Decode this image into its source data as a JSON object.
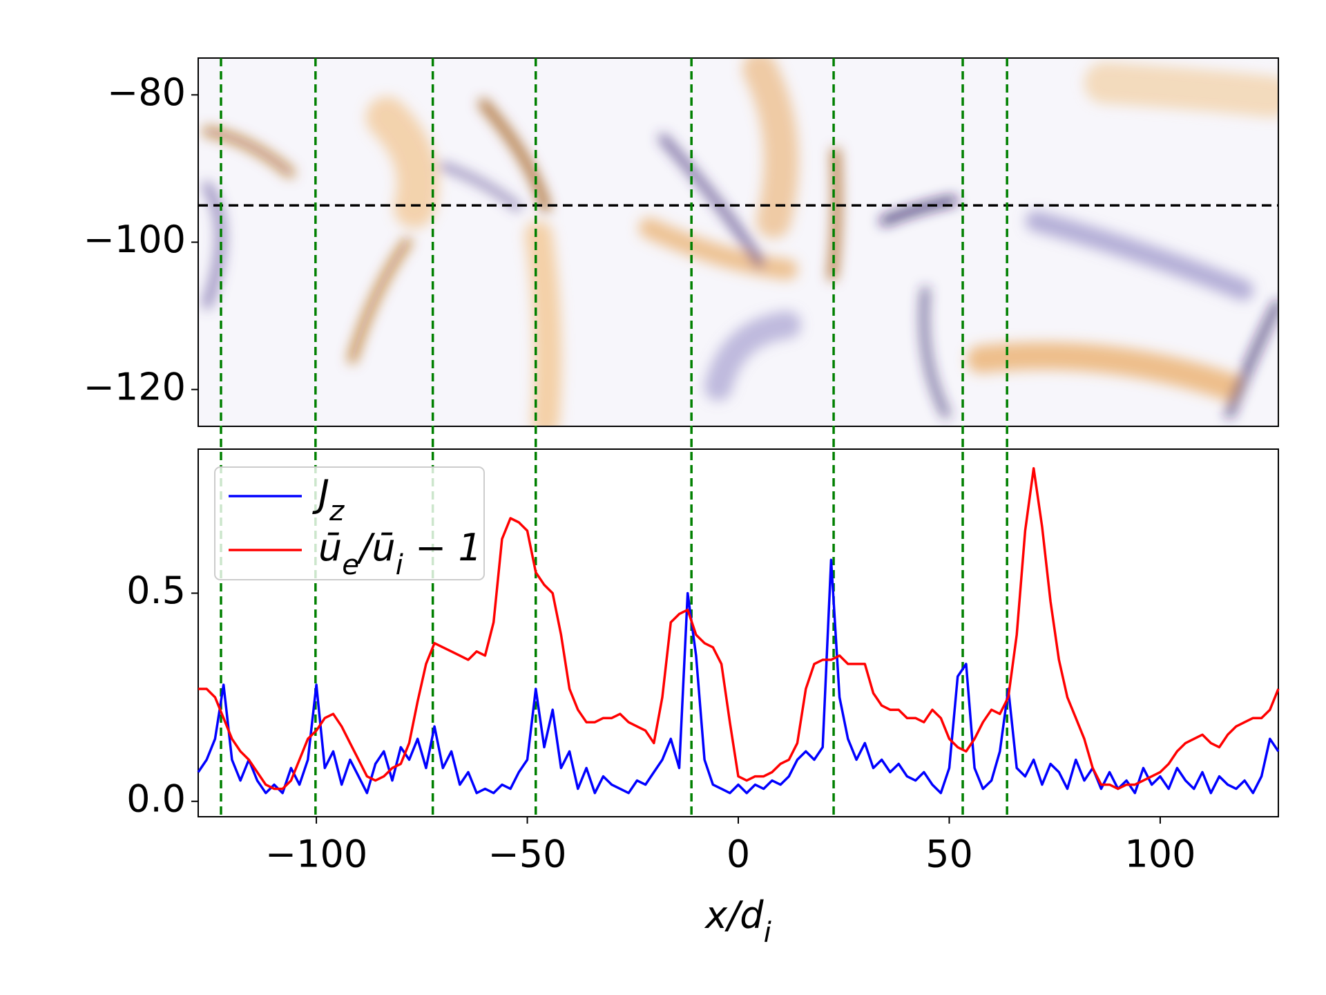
{
  "chart_data": [
    {
      "type": "heatmap",
      "xlim": [
        -128,
        128
      ],
      "ylim": [
        -125,
        -75
      ],
      "yticks": [
        {
          "value": -80,
          "label": "−80"
        },
        {
          "value": -100,
          "label": "−100"
        },
        {
          "value": -120,
          "label": "−120"
        }
      ],
      "hline": -95,
      "vlines": [
        -122.6,
        -100.2,
        -72.4,
        -48.0,
        -11.1,
        22.6,
        53.2,
        63.7
      ]
    },
    {
      "type": "line",
      "xlim": [
        -128,
        128
      ],
      "ylim": [
        -0.037,
        0.846
      ],
      "xticks": [
        {
          "value": -100,
          "label": "−100"
        },
        {
          "value": -50,
          "label": "−50"
        },
        0,
        50,
        100
      ],
      "yticks": [
        {
          "value": 0,
          "label": "0.0"
        },
        0.5
      ],
      "xlabel": "x/d_i",
      "legend": "upper left",
      "x": [
        -128,
        -126,
        -124,
        -122,
        -120,
        -118,
        -116,
        -114,
        -112,
        -110,
        -108,
        -106,
        -104,
        -102,
        -100,
        -98,
        -96,
        -94,
        -92,
        -90,
        -88,
        -86,
        -84,
        -82,
        -80,
        -78,
        -76,
        -74,
        -72,
        -70,
        -68,
        -66,
        -64,
        -62,
        -60,
        -58,
        -56,
        -54,
        -52,
        -50,
        -48,
        -46,
        -44,
        -42,
        -40,
        -38,
        -36,
        -34,
        -32,
        -30,
        -28,
        -26,
        -24,
        -22,
        -20,
        -18,
        -16,
        -14,
        -12,
        -10,
        -8,
        -6,
        -4,
        -2,
        0,
        2,
        4,
        6,
        8,
        10,
        12,
        14,
        16,
        18,
        20,
        22,
        24,
        26,
        28,
        30,
        32,
        34,
        36,
        38,
        40,
        42,
        44,
        46,
        48,
        50,
        52,
        54,
        56,
        58,
        60,
        62,
        64,
        66,
        68,
        70,
        72,
        74,
        76,
        78,
        80,
        82,
        84,
        86,
        88,
        90,
        92,
        94,
        96,
        98,
        100,
        102,
        104,
        106,
        108,
        110,
        112,
        114,
        116,
        118,
        120,
        122,
        124,
        126,
        128
      ],
      "series": [
        {
          "name": "J_z",
          "color": "#0000ff",
          "values": [
            0.07,
            0.1,
            0.15,
            0.28,
            0.1,
            0.05,
            0.1,
            0.05,
            0.02,
            0.04,
            0.02,
            0.08,
            0.04,
            0.1,
            0.28,
            0.08,
            0.12,
            0.04,
            0.1,
            0.06,
            0.02,
            0.09,
            0.12,
            0.05,
            0.13,
            0.1,
            0.15,
            0.08,
            0.18,
            0.08,
            0.12,
            0.04,
            0.07,
            0.02,
            0.03,
            0.02,
            0.04,
            0.03,
            0.07,
            0.1,
            0.27,
            0.13,
            0.22,
            0.08,
            0.12,
            0.03,
            0.08,
            0.02,
            0.06,
            0.04,
            0.03,
            0.02,
            0.05,
            0.04,
            0.07,
            0.1,
            0.15,
            0.08,
            0.5,
            0.35,
            0.1,
            0.04,
            0.03,
            0.02,
            0.04,
            0.02,
            0.04,
            0.03,
            0.05,
            0.04,
            0.06,
            0.1,
            0.12,
            0.1,
            0.13,
            0.58,
            0.25,
            0.15,
            0.1,
            0.14,
            0.08,
            0.1,
            0.07,
            0.09,
            0.06,
            0.05,
            0.07,
            0.04,
            0.02,
            0.08,
            0.3,
            0.33,
            0.08,
            0.03,
            0.05,
            0.12,
            0.27,
            0.08,
            0.06,
            0.1,
            0.04,
            0.09,
            0.07,
            0.03,
            0.1,
            0.05,
            0.08,
            0.03,
            0.07,
            0.03,
            0.05,
            0.02,
            0.08,
            0.04,
            0.06,
            0.03,
            0.08,
            0.05,
            0.03,
            0.07,
            0.02,
            0.06,
            0.04,
            0.03,
            0.05,
            0.02,
            0.06,
            0.15,
            0.12
          ]
        },
        {
          "name": "ū_e/ū_i − 1",
          "color": "#ff0000",
          "values": [
            0.27,
            0.27,
            0.25,
            0.2,
            0.15,
            0.12,
            0.1,
            0.07,
            0.04,
            0.03,
            0.03,
            0.05,
            0.1,
            0.15,
            0.17,
            0.2,
            0.21,
            0.18,
            0.14,
            0.1,
            0.06,
            0.05,
            0.06,
            0.08,
            0.09,
            0.14,
            0.24,
            0.33,
            0.38,
            0.37,
            0.36,
            0.35,
            0.34,
            0.36,
            0.35,
            0.43,
            0.63,
            0.68,
            0.67,
            0.65,
            0.55,
            0.52,
            0.5,
            0.4,
            0.27,
            0.22,
            0.19,
            0.19,
            0.2,
            0.2,
            0.21,
            0.19,
            0.18,
            0.17,
            0.14,
            0.25,
            0.43,
            0.45,
            0.46,
            0.4,
            0.38,
            0.37,
            0.33,
            0.19,
            0.06,
            0.05,
            0.06,
            0.06,
            0.07,
            0.09,
            0.1,
            0.14,
            0.27,
            0.33,
            0.34,
            0.34,
            0.35,
            0.33,
            0.33,
            0.33,
            0.26,
            0.23,
            0.22,
            0.22,
            0.2,
            0.2,
            0.19,
            0.22,
            0.2,
            0.15,
            0.13,
            0.12,
            0.15,
            0.19,
            0.22,
            0.21,
            0.25,
            0.4,
            0.65,
            0.8,
            0.66,
            0.48,
            0.34,
            0.25,
            0.2,
            0.15,
            0.08,
            0.04,
            0.04,
            0.03,
            0.04,
            0.04,
            0.05,
            0.06,
            0.07,
            0.09,
            0.12,
            0.14,
            0.15,
            0.16,
            0.14,
            0.13,
            0.16,
            0.18,
            0.19,
            0.2,
            0.2,
            0.22,
            0.27
          ]
        }
      ]
    }
  ]
}
